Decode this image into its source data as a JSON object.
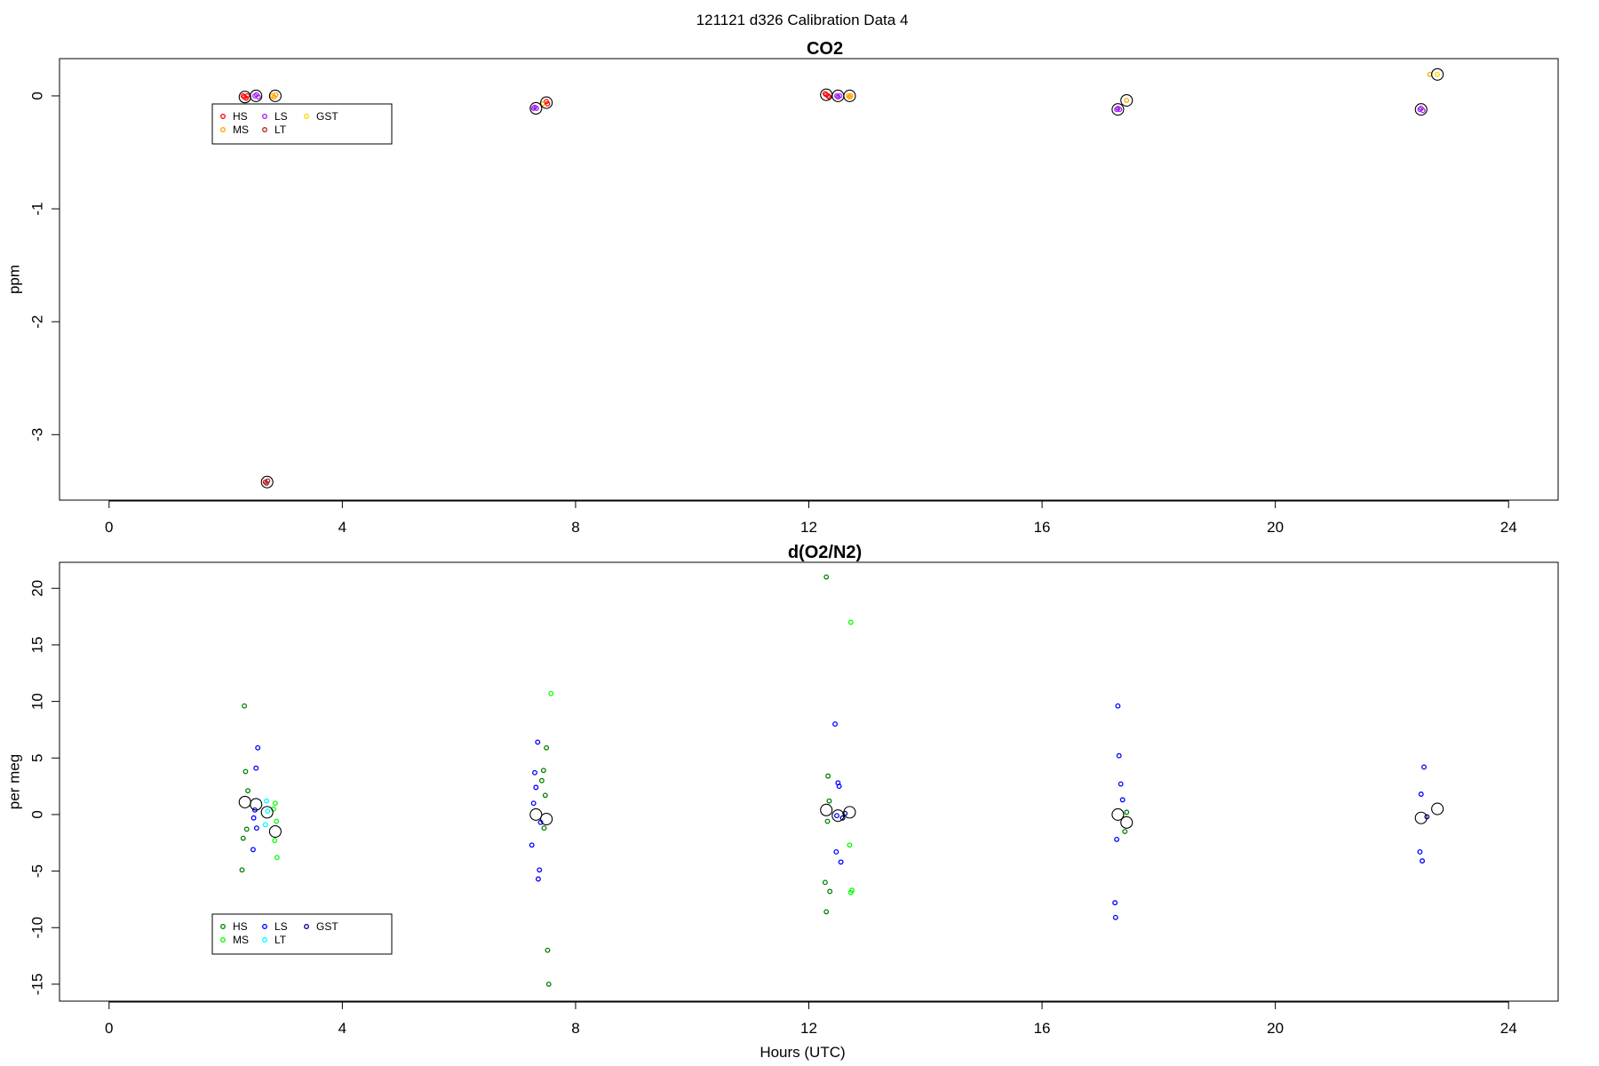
{
  "figure_title": "121121   d326   Calibration Data 4",
  "chart_data": [
    {
      "type": "scatter",
      "title": "CO2",
      "xlabel": "",
      "ylabel": "ppm",
      "xlim": [
        -0.85,
        24.85
      ],
      "ylim": [
        -3.58,
        0.33
      ],
      "xticks": [
        0,
        4,
        8,
        12,
        16,
        20,
        24
      ],
      "yticks": [
        0,
        -1,
        -2,
        -3
      ],
      "legend": {
        "placement": "top-left",
        "entries": [
          {
            "name": "HS",
            "color": "#ff0000"
          },
          {
            "name": "MS",
            "color": "#ffa500"
          },
          {
            "name": "LS",
            "color": "#a020f0"
          },
          {
            "name": "LT",
            "color": "#b22222"
          },
          {
            "name": "GST",
            "color": "#ffd700"
          }
        ]
      },
      "series": [
        {
          "name": "HS",
          "color": "#ff0000",
          "x": [
            2.3,
            2.32,
            2.35,
            2.37,
            12.28,
            12.3,
            12.33,
            12.35,
            7.5,
            7.52
          ],
          "y": [
            0.0,
            -0.01,
            -0.02,
            0.0,
            0.02,
            0.01,
            0.0,
            -0.01,
            -0.05,
            -0.07
          ]
        },
        {
          "name": "MS",
          "color": "#ffa500",
          "x": [
            2.8,
            2.83,
            2.86,
            12.68,
            12.7,
            12.72,
            17.45,
            7.43,
            22.65
          ],
          "y": [
            0.0,
            -0.01,
            0.01,
            0.0,
            -0.01,
            0.0,
            -0.04,
            -0.07,
            0.19
          ]
        },
        {
          "name": "LS",
          "color": "#a020f0",
          "x": [
            2.5,
            2.53,
            2.56,
            7.28,
            7.3,
            7.33,
            12.48,
            12.5,
            12.53,
            17.28,
            17.3,
            17.33,
            22.48,
            22.5,
            22.53
          ],
          "y": [
            0.0,
            0.01,
            -0.01,
            -0.11,
            -0.1,
            -0.11,
            0.0,
            -0.01,
            0.0,
            -0.12,
            -0.11,
            -0.12,
            -0.12,
            -0.11,
            -0.13
          ]
        },
        {
          "name": "LT",
          "color": "#b22222",
          "x": [
            2.68,
            2.7,
            2.72
          ],
          "y": [
            -3.42,
            -3.43,
            -3.41
          ]
        },
        {
          "name": "GST",
          "color": "#ffd700",
          "x": [
            22.78
          ],
          "y": [
            0.19
          ]
        },
        {
          "name": "mean",
          "color": "#000000",
          "marker": "open-circle-large",
          "x": [
            2.33,
            2.52,
            2.71,
            2.85,
            7.32,
            7.5,
            12.3,
            12.5,
            12.7,
            17.3,
            17.45,
            22.5,
            22.78
          ],
          "y": [
            -0.01,
            0.0,
            -3.42,
            0.0,
            -0.11,
            -0.06,
            0.01,
            0.0,
            0.0,
            -0.12,
            -0.04,
            -0.12,
            0.19
          ]
        }
      ]
    },
    {
      "type": "scatter",
      "title": "d(O2/N2)",
      "xlabel": "Hours (UTC)",
      "ylabel": "per meg",
      "xlim": [
        -0.85,
        24.85
      ],
      "ylim": [
        -16.5,
        22.3
      ],
      "xticks": [
        0,
        4,
        8,
        12,
        16,
        20,
        24
      ],
      "yticks": [
        20,
        15,
        10,
        5,
        0,
        -5,
        -10,
        -15
      ],
      "legend": {
        "placement": "bottom-left",
        "entries": [
          {
            "name": "HS",
            "color": "#008000"
          },
          {
            "name": "MS",
            "color": "#00ff00"
          },
          {
            "name": "LS",
            "color": "#0000ff"
          },
          {
            "name": "LT",
            "color": "#00ffff"
          },
          {
            "name": "GST",
            "color": "#00008b"
          }
        ]
      },
      "series": [
        {
          "name": "HS",
          "color": "#008000",
          "x": [
            2.32,
            2.34,
            2.38,
            2.3,
            2.28,
            2.36,
            7.45,
            7.42,
            7.48,
            7.5,
            7.46,
            7.52,
            7.54,
            12.3,
            12.33,
            12.35,
            12.32,
            12.28,
            12.3,
            12.36,
            17.45,
            17.42
          ],
          "y": [
            9.6,
            3.8,
            2.1,
            -2.1,
            -4.9,
            -1.3,
            3.9,
            3.0,
            1.7,
            5.9,
            -1.2,
            -12.0,
            -15.0,
            21.0,
            3.4,
            1.2,
            -0.6,
            -6.0,
            -8.6,
            -6.8,
            0.2,
            -1.5
          ]
        },
        {
          "name": "MS",
          "color": "#00ff00",
          "x": [
            2.85,
            2.87,
            2.84,
            2.88,
            2.82,
            12.72,
            12.7,
            12.74,
            12.72,
            7.58
          ],
          "y": [
            1.0,
            -0.6,
            -2.3,
            -3.8,
            0.5,
            17.0,
            -2.7,
            -6.7,
            -6.9,
            10.7
          ]
        },
        {
          "name": "LS",
          "color": "#0000ff",
          "x": [
            2.55,
            2.52,
            2.5,
            2.48,
            2.47,
            2.53,
            7.35,
            7.3,
            7.32,
            7.28,
            7.38,
            7.36,
            7.4,
            7.25,
            12.45,
            12.5,
            12.52,
            12.48,
            12.47,
            12.55,
            17.3,
            17.32,
            17.35,
            17.38,
            17.28,
            17.25,
            17.26,
            22.55,
            22.5,
            22.48,
            22.52
          ],
          "y": [
            5.9,
            4.1,
            0.4,
            -0.3,
            -3.1,
            -1.2,
            6.4,
            3.7,
            2.4,
            1.0,
            -4.9,
            -5.7,
            -0.7,
            -2.7,
            8.0,
            2.8,
            2.5,
            -0.1,
            -3.3,
            -4.2,
            9.6,
            5.2,
            2.7,
            1.3,
            -2.2,
            -7.8,
            -9.1,
            4.2,
            1.8,
            -3.3,
            -4.1
          ]
        },
        {
          "name": "LT",
          "color": "#00ffff",
          "x": [
            2.7,
            2.72,
            2.68
          ],
          "y": [
            1.2,
            0.3,
            -0.9
          ]
        },
        {
          "name": "GST",
          "color": "#00008b",
          "x": [
            12.58,
            12.62,
            22.6
          ],
          "y": [
            -0.3,
            0.1,
            -0.2
          ]
        },
        {
          "name": "mean",
          "color": "#000000",
          "marker": "open-circle-large",
          "x": [
            2.33,
            2.52,
            2.71,
            2.85,
            7.32,
            7.5,
            12.3,
            12.5,
            12.7,
            17.3,
            17.45,
            22.5,
            22.78
          ],
          "y": [
            1.1,
            0.9,
            0.2,
            -1.5,
            0.0,
            -0.4,
            0.4,
            -0.1,
            0.2,
            0.0,
            -0.7,
            -0.3,
            0.5
          ]
        }
      ]
    }
  ]
}
